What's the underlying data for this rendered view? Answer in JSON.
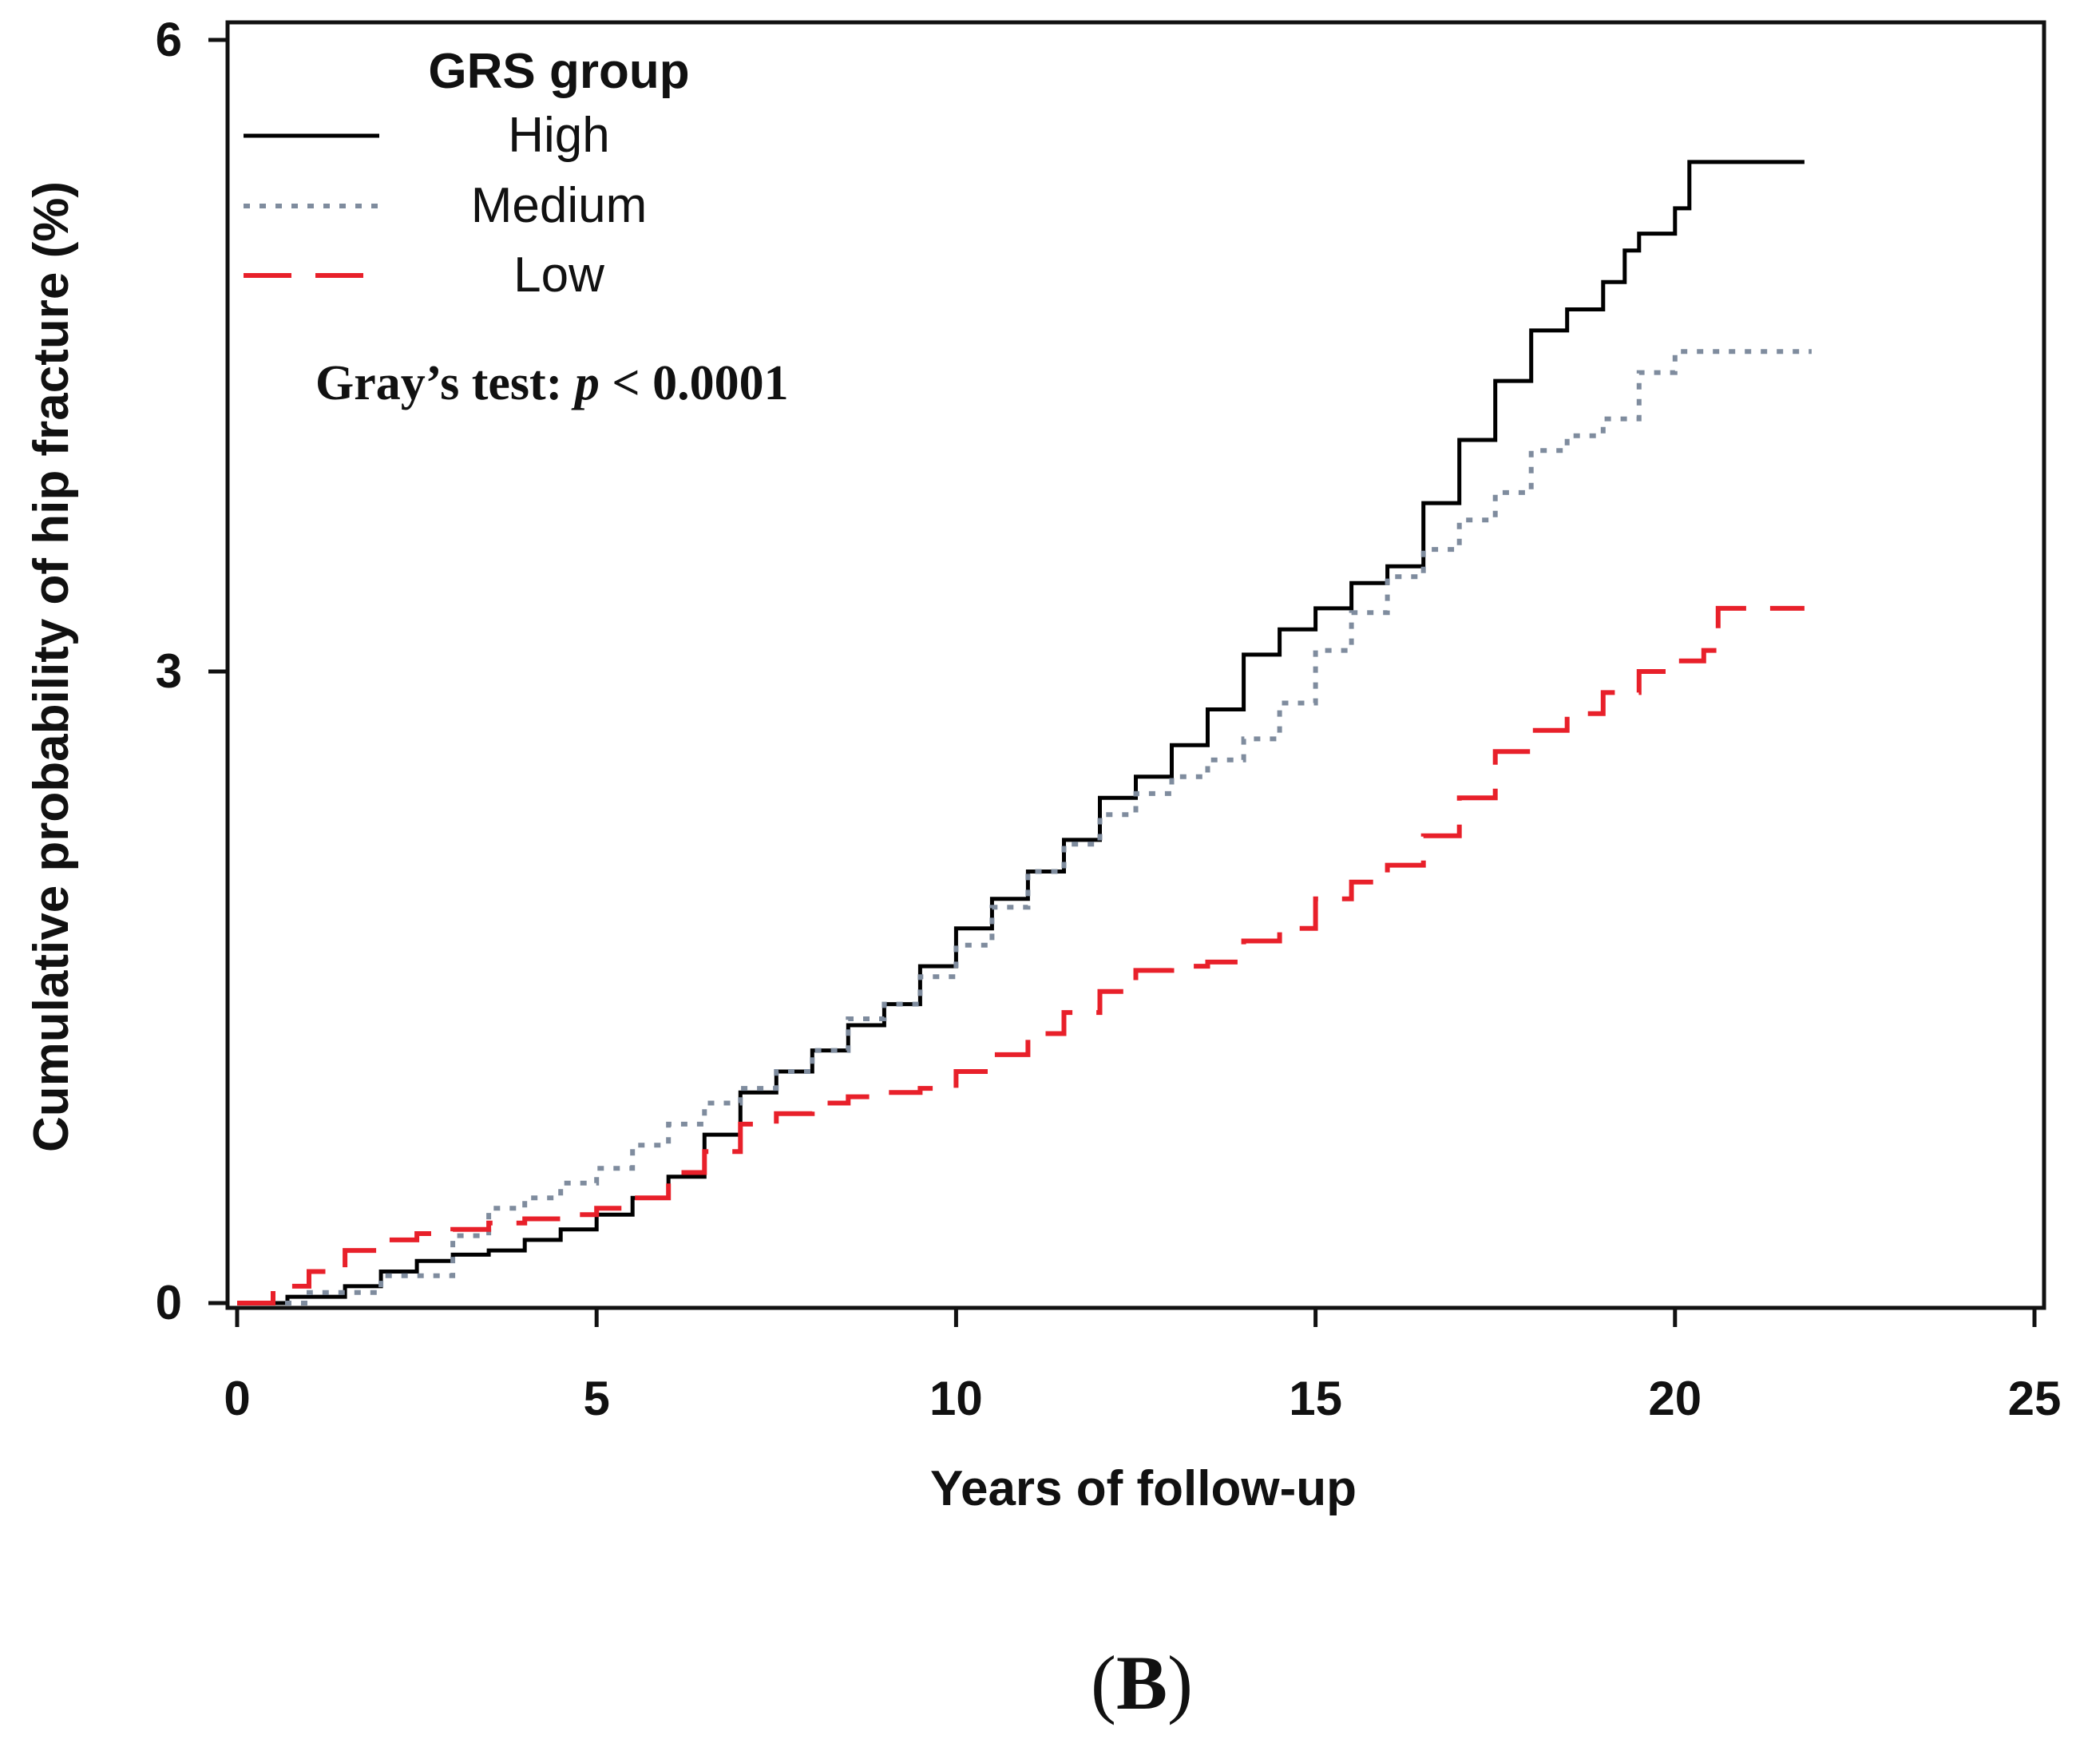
{
  "chart_data": {
    "type": "line",
    "title": "",
    "xlabel": "Years of follow-up",
    "ylabel": "Cumulative probability of hip fracture (%)",
    "xlim": [
      0,
      25
    ],
    "ylim": [
      0,
      6
    ],
    "xticks": [
      0,
      5,
      10,
      15,
      20,
      25
    ],
    "yticks": [
      0,
      3,
      6
    ],
    "grid": false,
    "legend": {
      "title": "GRS group",
      "placement": "top-left"
    },
    "annotation": {
      "prefix": "Gray’s test: ",
      "italic": "p",
      "suffix": " < 0.0001"
    },
    "panel_label": {
      "open": "(",
      "letter": "B",
      "close": ")"
    },
    "series": [
      {
        "name": "High",
        "color": "#000000",
        "style": "solid",
        "x": [
          0,
          0.7,
          1.5,
          2.0,
          2.5,
          3.0,
          3.5,
          4.0,
          4.5,
          5.0,
          5.5,
          6.0,
          6.5,
          7.0,
          7.5,
          8.0,
          8.5,
          9.0,
          9.5,
          10.0,
          10.5,
          11.0,
          11.5,
          12.0,
          12.5,
          13.0,
          13.5,
          14.0,
          14.5,
          15.0,
          15.5,
          16.0,
          16.5,
          17.0,
          17.5,
          18.0,
          18.5,
          19.0,
          19.3,
          19.5,
          20.0,
          20.2,
          20.5,
          21.0,
          21.8
        ],
        "y": [
          0,
          0.03,
          0.08,
          0.15,
          0.2,
          0.23,
          0.25,
          0.3,
          0.35,
          0.42,
          0.5,
          0.6,
          0.8,
          1.0,
          1.1,
          1.2,
          1.32,
          1.42,
          1.6,
          1.78,
          1.92,
          2.05,
          2.2,
          2.4,
          2.5,
          2.65,
          2.82,
          3.08,
          3.2,
          3.3,
          3.42,
          3.5,
          3.8,
          4.1,
          4.38,
          4.62,
          4.72,
          4.85,
          5.0,
          5.08,
          5.2,
          5.42,
          5.42,
          5.42,
          5.42
        ]
      },
      {
        "name": "Medium",
        "color": "#7f8c9e",
        "style": "dotted",
        "x": [
          0,
          1.0,
          2.0,
          3.0,
          3.5,
          4.0,
          4.5,
          5.0,
          5.5,
          6.0,
          6.5,
          7.0,
          7.5,
          8.0,
          8.5,
          9.0,
          9.5,
          10.0,
          10.5,
          11.0,
          11.5,
          12.0,
          12.5,
          13.0,
          13.5,
          14.0,
          14.5,
          15.0,
          15.5,
          16.0,
          16.5,
          17.0,
          17.5,
          18.0,
          18.5,
          19.0,
          19.5,
          20.0,
          20.5,
          21.0,
          21.9
        ],
        "y": [
          0,
          0.05,
          0.13,
          0.32,
          0.45,
          0.5,
          0.57,
          0.64,
          0.75,
          0.85,
          0.95,
          1.02,
          1.1,
          1.2,
          1.35,
          1.42,
          1.55,
          1.7,
          1.88,
          2.05,
          2.18,
          2.32,
          2.42,
          2.5,
          2.58,
          2.68,
          2.85,
          3.1,
          3.28,
          3.45,
          3.58,
          3.72,
          3.85,
          4.05,
          4.12,
          4.2,
          4.42,
          4.52,
          4.52,
          4.52,
          4.52
        ]
      },
      {
        "name": "Low",
        "color": "#e8202a",
        "style": "dashed",
        "x": [
          0,
          0.5,
          1.0,
          1.5,
          2.0,
          2.5,
          3.0,
          3.5,
          4.0,
          4.5,
          5.0,
          5.5,
          6.0,
          6.5,
          7.0,
          7.5,
          8.0,
          8.5,
          9.0,
          9.5,
          10.0,
          10.5,
          11.0,
          11.5,
          12.0,
          12.5,
          13.0,
          13.5,
          14.0,
          14.5,
          15.0,
          15.5,
          16.0,
          16.5,
          17.0,
          17.5,
          18.0,
          18.5,
          19.0,
          19.5,
          20.0,
          20.4,
          20.6,
          21.0,
          21.8
        ],
        "y": [
          0,
          0.08,
          0.15,
          0.25,
          0.3,
          0.33,
          0.35,
          0.38,
          0.4,
          0.42,
          0.45,
          0.5,
          0.62,
          0.72,
          0.85,
          0.9,
          0.95,
          0.98,
          1.0,
          1.02,
          1.1,
          1.18,
          1.28,
          1.38,
          1.48,
          1.58,
          1.6,
          1.62,
          1.72,
          1.78,
          1.92,
          2.0,
          2.08,
          2.22,
          2.4,
          2.62,
          2.72,
          2.8,
          2.9,
          3.0,
          3.05,
          3.1,
          3.3,
          3.3,
          3.3
        ]
      }
    ]
  }
}
